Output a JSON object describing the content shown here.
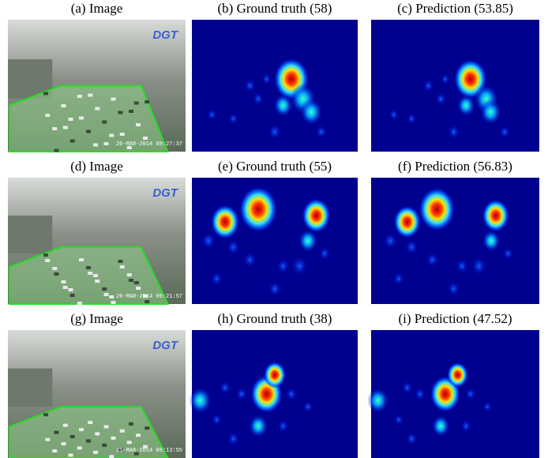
{
  "figure": {
    "rows": [
      {
        "image": {
          "caption": "(a) Image",
          "logo": "DGT",
          "timestamp": "26-MAR-2014 09:27:37"
        },
        "ground_truth": {
          "caption": "(b) Ground truth (58)"
        },
        "prediction": {
          "caption": "(c) Prediction (53.85)"
        }
      },
      {
        "image": {
          "caption": "(d) Image",
          "logo": "DGT",
          "timestamp": "26-MAR-2014 09:21:57"
        },
        "ground_truth": {
          "caption": "(e) Ground truth (55)"
        },
        "prediction": {
          "caption": "(f) Prediction (56.83)"
        }
      },
      {
        "image": {
          "caption": "(g) Image",
          "logo": "DGT",
          "timestamp": "25-MAR-2014 09:13:55"
        },
        "ground_truth": {
          "caption": "(h) Ground truth (38)"
        },
        "prediction": {
          "caption": "(i) Prediction (47.52)"
        }
      }
    ]
  }
}
